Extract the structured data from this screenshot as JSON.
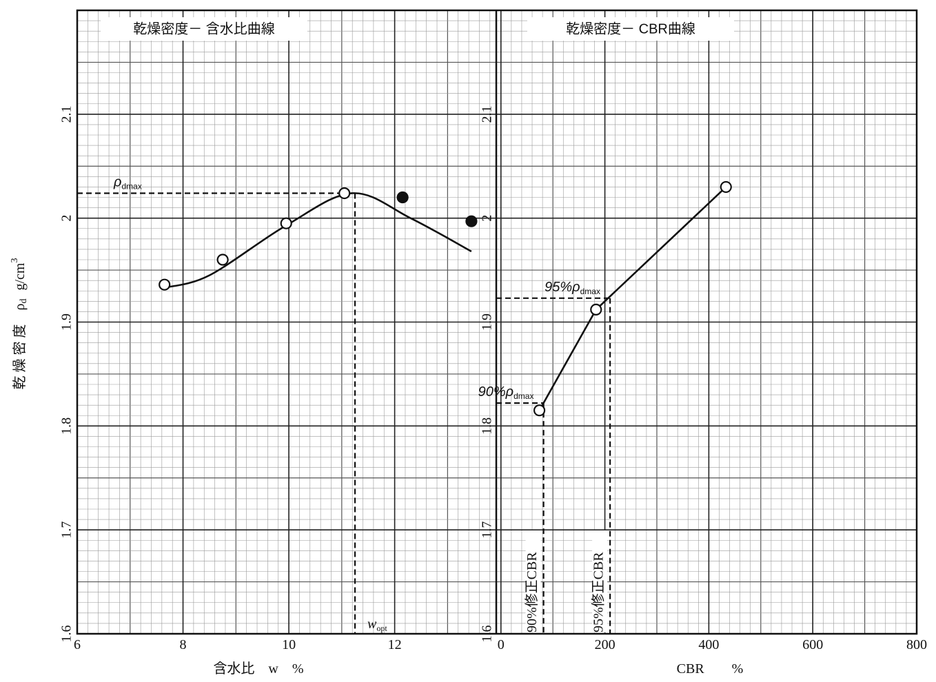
{
  "chart_data": [
    {
      "type": "line",
      "title": "乾燥密度－ 含水比曲線",
      "xlabel": "含水比　w　%",
      "ylabel": {
        "text": "乾 燥 密 度　ρ",
        "sub": "d",
        "unit": "g/cm",
        "sup": "3"
      },
      "xlim": [
        6,
        13.92
      ],
      "xticks": [
        6,
        8,
        10,
        12
      ],
      "ylim": [
        1.6,
        2.2
      ],
      "yticks": [
        1.6,
        1.7,
        1.8,
        1.9,
        2,
        2.1
      ],
      "grid": true,
      "series": [
        {
          "x": [
            7.65,
            8.5,
            9.95,
            11.2,
            12.3,
            13.45
          ],
          "values": [
            1.933,
            1.945,
            1.993,
            2.024,
            2.0,
            1.968
          ],
          "marker": "none",
          "smooth": true,
          "color": "#111111"
        },
        {
          "x": [
            7.65,
            8.75,
            9.95,
            11.05
          ],
          "values": [
            1.936,
            1.96,
            1.995,
            2.024
          ],
          "marker": "open",
          "connect": false,
          "color": "#111111"
        },
        {
          "x": [
            12.15,
            13.45
          ],
          "values": [
            2.02,
            1.997
          ],
          "marker": "filled",
          "connect": false,
          "color": "#111111"
        }
      ],
      "references": [
        {
          "x": 11.25,
          "y": 2.024,
          "y_label": {
            "text": "ρ",
            "sub": "dmax"
          },
          "x_label": {
            "text": "w",
            "sub": "opt"
          },
          "x_label_rotated": false
        }
      ]
    },
    {
      "type": "line",
      "title": "乾燥密度－ CBR曲線",
      "xlabel": "CBR　　%",
      "xlim": [
        -9,
        800
      ],
      "xticks": [
        0,
        200,
        400,
        600,
        800
      ],
      "ylim": [
        1.6,
        2.2
      ],
      "yticks": [
        1.6,
        1.7,
        1.8,
        1.9,
        2,
        2.1
      ],
      "grid": true,
      "series": [
        {
          "x": [
            74,
            183,
            433
          ],
          "values": [
            1.815,
            1.912,
            2.03
          ],
          "marker": "open",
          "connect": true,
          "color": "#111111"
        }
      ],
      "references": [
        {
          "x": 82,
          "y": 1.822,
          "y_label": {
            "text": "90%ρ",
            "sub": "dmax"
          },
          "x_label": {
            "text": "90%修正CBR"
          },
          "x_label_rotated": true
        },
        {
          "x": 210,
          "y": 1.923,
          "y_label": {
            "text": "95%ρ",
            "sub": "dmax"
          },
          "x_label": {
            "text": "95%修正CBR"
          },
          "x_label_rotated": true
        }
      ]
    }
  ]
}
